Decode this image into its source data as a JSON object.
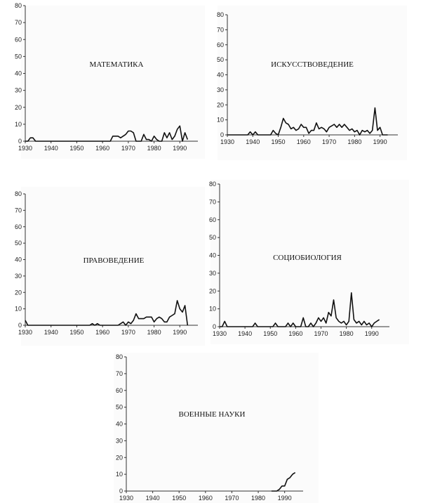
{
  "chart_data": [
    {
      "type": "line",
      "title": "МАТЕМАТИКА",
      "xlim": [
        1930,
        1997
      ],
      "ylim": [
        0,
        80
      ],
      "x_ticks": [
        1930,
        1940,
        1950,
        1960,
        1970,
        1980,
        1990
      ],
      "y_ticks": [
        0,
        10,
        20,
        30,
        40,
        50,
        60,
        70,
        80
      ],
      "grid": false,
      "x": [
        1930,
        1931,
        1932,
        1933,
        1934,
        1935,
        1936,
        1937,
        1938,
        1939,
        1940,
        1941,
        1942,
        1943,
        1944,
        1945,
        1946,
        1947,
        1948,
        1949,
        1950,
        1951,
        1952,
        1953,
        1954,
        1955,
        1956,
        1957,
        1958,
        1959,
        1960,
        1961,
        1962,
        1963,
        1964,
        1965,
        1966,
        1967,
        1968,
        1969,
        1970,
        1971,
        1972,
        1973,
        1974,
        1975,
        1976,
        1977,
        1978,
        1979,
        1980,
        1981,
        1982,
        1983,
        1984,
        1985,
        1986,
        1987,
        1988,
        1989,
        1990,
        1991,
        1992,
        1993
      ],
      "y": [
        0,
        0,
        2,
        2,
        0,
        0,
        0,
        0,
        0,
        0,
        0,
        0,
        0,
        0,
        0,
        0,
        0,
        0,
        0,
        0,
        0,
        0,
        0,
        0,
        0,
        0,
        0,
        0,
        0,
        0,
        0,
        0,
        0,
        0,
        3,
        3,
        3,
        2,
        3,
        4,
        6,
        6,
        5,
        0,
        0,
        0,
        4,
        1,
        1,
        0,
        3,
        1,
        0,
        0,
        5,
        2,
        5,
        1,
        3,
        7,
        9,
        0,
        5,
        1
      ]
    },
    {
      "type": "line",
      "title": "ИСКУССТВОВЕДЕНИЕ",
      "xlim": [
        1930,
        1997
      ],
      "ylim": [
        0,
        80
      ],
      "x_ticks": [
        1930,
        1940,
        1950,
        1960,
        1970,
        1980,
        1990
      ],
      "y_ticks": [
        0,
        10,
        20,
        30,
        40,
        50,
        60,
        70,
        80
      ],
      "grid": false,
      "x": [
        1930,
        1931,
        1932,
        1933,
        1934,
        1935,
        1936,
        1937,
        1938,
        1939,
        1940,
        1941,
        1942,
        1943,
        1944,
        1945,
        1946,
        1947,
        1948,
        1949,
        1950,
        1951,
        1952,
        1953,
        1954,
        1955,
        1956,
        1957,
        1958,
        1959,
        1960,
        1961,
        1962,
        1963,
        1964,
        1965,
        1966,
        1967,
        1968,
        1969,
        1970,
        1971,
        1972,
        1973,
        1974,
        1975,
        1976,
        1977,
        1978,
        1979,
        1980,
        1981,
        1982,
        1983,
        1984,
        1985,
        1986,
        1987,
        1988,
        1989,
        1990,
        1991,
        1992,
        1993
      ],
      "y": [
        0,
        0,
        0,
        0,
        0,
        0,
        0,
        0,
        0,
        2,
        0,
        2,
        0,
        0,
        0,
        0,
        0,
        0,
        3,
        1,
        0,
        5,
        11,
        8,
        7,
        4,
        5,
        3,
        4,
        7,
        5,
        5,
        1,
        3,
        3,
        8,
        4,
        5,
        4,
        2,
        5,
        6,
        7,
        5,
        7,
        5,
        7,
        5,
        3,
        4,
        2,
        3,
        0,
        3,
        2,
        3,
        1,
        3,
        18,
        3,
        5,
        0,
        0,
        0
      ]
    },
    {
      "type": "line",
      "title": "ПРАВОВЕДЕНИЕ",
      "xlim": [
        1930,
        1997
      ],
      "ylim": [
        0,
        80
      ],
      "x_ticks": [
        1930,
        1940,
        1950,
        1960,
        1970,
        1980,
        1990
      ],
      "y_ticks": [
        0,
        10,
        20,
        30,
        40,
        50,
        60,
        70,
        80
      ],
      "grid": false,
      "x": [
        1930,
        1931,
        1932,
        1933,
        1934,
        1935,
        1936,
        1937,
        1938,
        1939,
        1940,
        1941,
        1942,
        1943,
        1944,
        1945,
        1946,
        1947,
        1948,
        1949,
        1950,
        1951,
        1952,
        1953,
        1954,
        1955,
        1956,
        1957,
        1958,
        1959,
        1960,
        1961,
        1962,
        1963,
        1964,
        1965,
        1966,
        1967,
        1968,
        1969,
        1970,
        1971,
        1972,
        1973,
        1974,
        1975,
        1976,
        1977,
        1978,
        1979,
        1980,
        1981,
        1982,
        1983,
        1984,
        1985,
        1986,
        1987,
        1988,
        1989,
        1990,
        1991,
        1992,
        1993
      ],
      "y": [
        3,
        0,
        0,
        0,
        0,
        0,
        0,
        0,
        0,
        0,
        0,
        0,
        0,
        0,
        0,
        0,
        0,
        0,
        0,
        0,
        0,
        0,
        0,
        0,
        0,
        0,
        1,
        0,
        1,
        0,
        0,
        0,
        0,
        0,
        0,
        0,
        0,
        1,
        2,
        0,
        2,
        1,
        3,
        7,
        4,
        4,
        4,
        5,
        5,
        5,
        2,
        4,
        5,
        4,
        2,
        2,
        5,
        6,
        7,
        15,
        10,
        8,
        12,
        0
      ]
    },
    {
      "type": "line",
      "title": "СОЦИОБИОЛОГИЯ",
      "xlim": [
        1930,
        1997
      ],
      "ylim": [
        0,
        80
      ],
      "x_ticks": [
        1930,
        1940,
        1950,
        1960,
        1970,
        1980,
        1990
      ],
      "y_ticks": [
        0,
        10,
        20,
        30,
        40,
        50,
        60,
        70,
        80
      ],
      "grid": false,
      "x": [
        1930,
        1931,
        1932,
        1933,
        1934,
        1935,
        1936,
        1937,
        1938,
        1939,
        1940,
        1941,
        1942,
        1943,
        1944,
        1945,
        1946,
        1947,
        1948,
        1949,
        1950,
        1951,
        1952,
        1953,
        1954,
        1955,
        1956,
        1957,
        1958,
        1959,
        1960,
        1961,
        1962,
        1963,
        1964,
        1965,
        1966,
        1967,
        1968,
        1969,
        1970,
        1971,
        1972,
        1973,
        1974,
        1975,
        1976,
        1977,
        1978,
        1979,
        1980,
        1981,
        1982,
        1983,
        1984,
        1985,
        1986,
        1987,
        1988,
        1989,
        1990,
        1991,
        1992,
        1993
      ],
      "y": [
        0,
        0,
        3,
        0,
        0,
        0,
        0,
        0,
        0,
        0,
        0,
        0,
        0,
        0,
        2,
        0,
        0,
        0,
        0,
        0,
        0,
        0,
        2,
        0,
        0,
        0,
        0,
        2,
        0,
        2,
        0,
        0,
        0,
        5,
        0,
        0,
        2,
        0,
        2,
        5,
        3,
        5,
        2,
        8,
        6,
        15,
        5,
        3,
        2,
        3,
        1,
        3,
        19,
        4,
        2,
        3,
        1,
        3,
        1,
        2,
        0,
        2,
        3,
        4
      ]
    },
    {
      "type": "line",
      "title": "ВОЕННЫЕ НАУКИ",
      "xlim": [
        1930,
        1997
      ],
      "ylim": [
        0,
        80
      ],
      "x_ticks": [
        1930,
        1940,
        1950,
        1960,
        1970,
        1980,
        1990
      ],
      "y_ticks": [
        0,
        10,
        20,
        30,
        40,
        50,
        60,
        70,
        80
      ],
      "grid": false,
      "x": [
        1985,
        1986,
        1987,
        1988,
        1989,
        1990,
        1991,
        1992,
        1993,
        1994
      ],
      "y": [
        0,
        0,
        0,
        1,
        3,
        3,
        7,
        8,
        10,
        11
      ]
    }
  ]
}
